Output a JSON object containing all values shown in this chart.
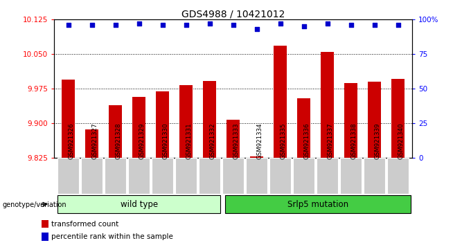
{
  "title": "GDS4988 / 10421012",
  "samples": [
    "GSM921326",
    "GSM921327",
    "GSM921328",
    "GSM921329",
    "GSM921330",
    "GSM921331",
    "GSM921332",
    "GSM921333",
    "GSM921334",
    "GSM921335",
    "GSM921336",
    "GSM921337",
    "GSM921338",
    "GSM921339",
    "GSM921340"
  ],
  "bar_values": [
    9.995,
    9.887,
    9.94,
    9.957,
    9.97,
    9.983,
    9.992,
    9.908,
    9.828,
    10.068,
    9.955,
    10.055,
    9.987,
    9.99,
    9.997
  ],
  "percentile_values": [
    96,
    96,
    96,
    97,
    96,
    96,
    97,
    96,
    93,
    97,
    95,
    97,
    96,
    96,
    96
  ],
  "ylim_left": [
    9.825,
    10.125
  ],
  "ylim_right": [
    0,
    100
  ],
  "yticks_left": [
    9.825,
    9.9,
    9.975,
    10.05,
    10.125
  ],
  "yticks_right": [
    0,
    25,
    50,
    75,
    100
  ],
  "ytick_right_labels": [
    "0",
    "25",
    "50",
    "75",
    "100%"
  ],
  "bar_color": "#cc0000",
  "percentile_color": "#0000cc",
  "group1_label": "wild type",
  "group2_label": "Srlp5 mutation",
  "group1_count": 7,
  "group2_count": 8,
  "group1_bg": "#ccffcc",
  "group2_bg": "#44cc44",
  "tick_bg": "#cccccc",
  "legend_tc_label": "transformed count",
  "legend_pr_label": "percentile rank within the sample",
  "genotype_label": "genotype/variation"
}
